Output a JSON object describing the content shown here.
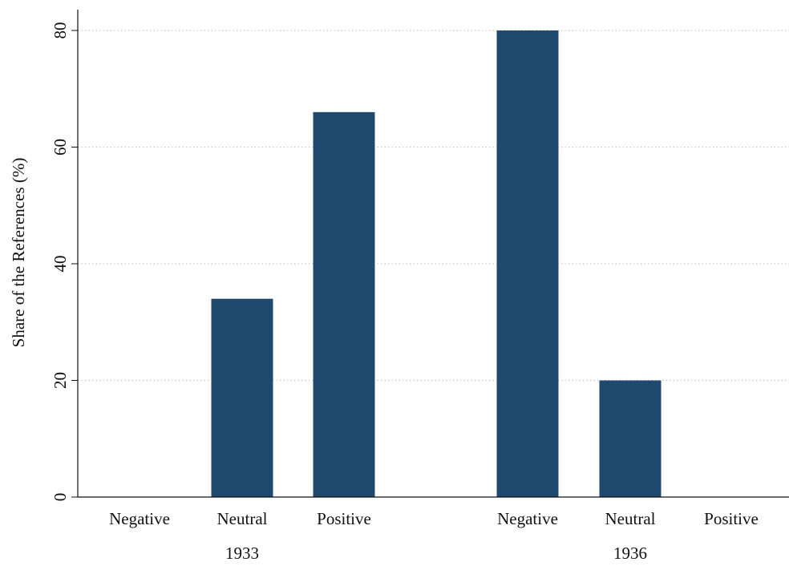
{
  "chart_data": {
    "type": "bar",
    "title": "",
    "xlabel": "",
    "ylabel": "Share of the References (%)",
    "ylim": [
      0,
      80
    ],
    "yticks": [
      0,
      20,
      40,
      60,
      80
    ],
    "grid": true,
    "bar_color": "#1f4a6e",
    "grid_color": "#c8c8c8",
    "groups": [
      {
        "label": "1933",
        "categories": [
          "Negative",
          "Neutral",
          "Positive"
        ],
        "values": [
          0,
          34,
          66
        ]
      },
      {
        "label": "1936",
        "categories": [
          "Negative",
          "Neutral",
          "Positive"
        ],
        "values": [
          80,
          20,
          0
        ]
      }
    ]
  }
}
